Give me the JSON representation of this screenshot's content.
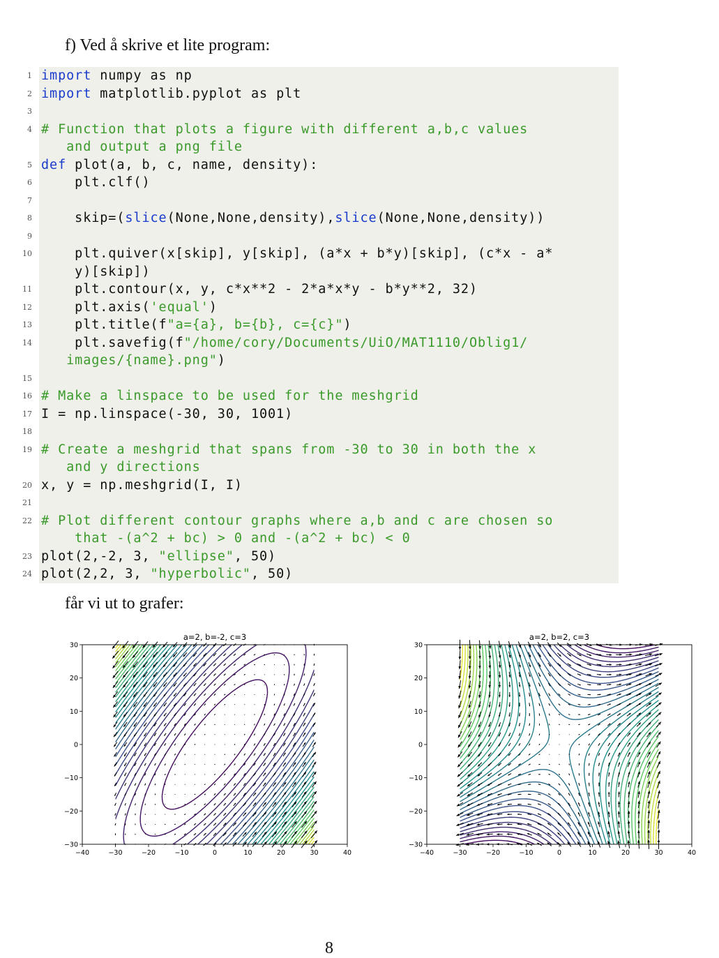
{
  "intro": "f) Ved å skrive et lite program:",
  "code": [
    {
      "n": "1",
      "segs": [
        {
          "t": "import",
          "c": "kw"
        },
        {
          "t": " numpy as np",
          "c": ""
        }
      ]
    },
    {
      "n": "2",
      "segs": [
        {
          "t": "import",
          "c": "kw"
        },
        {
          "t": " matplotlib.pyplot as plt",
          "c": ""
        }
      ]
    },
    {
      "n": "3",
      "segs": []
    },
    {
      "n": "4",
      "segs": [
        {
          "t": "# Function that plots a figure with different a,b,c values",
          "c": "cm"
        }
      ]
    },
    {
      "n": "",
      "segs": [
        {
          "t": "   and output a png file",
          "c": "cm"
        }
      ]
    },
    {
      "n": "5",
      "segs": [
        {
          "t": "def",
          "c": "kw"
        },
        {
          "t": " plot(a, b, c, name, density):",
          "c": ""
        }
      ]
    },
    {
      "n": "6",
      "segs": [
        {
          "t": "    plt.clf()",
          "c": ""
        }
      ]
    },
    {
      "n": "7",
      "segs": []
    },
    {
      "n": "8",
      "segs": [
        {
          "t": "    skip=(",
          "c": ""
        },
        {
          "t": "slice",
          "c": "kw"
        },
        {
          "t": "(None,None,density),",
          "c": ""
        },
        {
          "t": "slice",
          "c": "kw"
        },
        {
          "t": "(None,None,density))",
          "c": ""
        }
      ]
    },
    {
      "n": "9",
      "segs": []
    },
    {
      "n": "10",
      "segs": [
        {
          "t": "    plt.quiver(x[skip], y[skip], (a*x + b*y)[skip], (c*x - a*",
          "c": ""
        }
      ]
    },
    {
      "n": "",
      "segs": [
        {
          "t": "    y)[skip])",
          "c": ""
        }
      ]
    },
    {
      "n": "11",
      "segs": [
        {
          "t": "    plt.contour(x, y, c*x**2 - 2*a*x*y - b*y**2, 32)",
          "c": ""
        }
      ]
    },
    {
      "n": "12",
      "segs": [
        {
          "t": "    plt.axis(",
          "c": ""
        },
        {
          "t": "'equal'",
          "c": "st"
        },
        {
          "t": ")",
          "c": ""
        }
      ]
    },
    {
      "n": "13",
      "segs": [
        {
          "t": "    plt.title(f",
          "c": ""
        },
        {
          "t": "\"a={a}, b={b}, c={c}\"",
          "c": "st"
        },
        {
          "t": ")",
          "c": ""
        }
      ]
    },
    {
      "n": "14",
      "segs": [
        {
          "t": "    plt.savefig(f",
          "c": ""
        },
        {
          "t": "\"/home/cory/Documents/UiO/MAT1110/Oblig1/",
          "c": "st"
        }
      ]
    },
    {
      "n": "",
      "segs": [
        {
          "t": "   images/{name}.png\"",
          "c": "st"
        },
        {
          "t": ")",
          "c": ""
        }
      ]
    },
    {
      "n": "15",
      "segs": []
    },
    {
      "n": "16",
      "segs": [
        {
          "t": "# Make a linspace to be used for the meshgrid",
          "c": "cm"
        }
      ]
    },
    {
      "n": "17",
      "segs": [
        {
          "t": "I = np.linspace(-30, 30, 1001)",
          "c": ""
        }
      ]
    },
    {
      "n": "18",
      "segs": []
    },
    {
      "n": "19",
      "segs": [
        {
          "t": "# Create a meshgrid that spans from -30 to 30 in both the x",
          "c": "cm"
        }
      ]
    },
    {
      "n": "",
      "segs": [
        {
          "t": "   and y directions",
          "c": "cm"
        }
      ]
    },
    {
      "n": "20",
      "segs": [
        {
          "t": "x, y = np.meshgrid(I, I)",
          "c": ""
        }
      ]
    },
    {
      "n": "21",
      "segs": []
    },
    {
      "n": "22",
      "segs": [
        {
          "t": "# Plot different contour graphs where a,b and c are chosen so",
          "c": "cm"
        }
      ]
    },
    {
      "n": "",
      "segs": [
        {
          "t": "    that -(a^2 + bc) > 0 and -(a^2 + bc) < 0",
          "c": "cm"
        }
      ]
    },
    {
      "n": "23",
      "segs": [
        {
          "t": "plot(2,-2, 3, ",
          "c": ""
        },
        {
          "t": "\"ellipse\"",
          "c": "st"
        },
        {
          "t": ", 50)",
          "c": ""
        }
      ]
    },
    {
      "n": "24",
      "segs": [
        {
          "t": "plot(2,2, 3, ",
          "c": ""
        },
        {
          "t": "\"hyperbolic\"",
          "c": "st"
        },
        {
          "t": ", 50)",
          "c": ""
        }
      ]
    }
  ],
  "outro": "får vi ut to grafer:",
  "page_number": "8",
  "colors": {
    "keyword": "#1a3ccc",
    "comment": "#3a9a2a",
    "code_bg": "#f0f0eb"
  },
  "chart_data": [
    {
      "type": "contour",
      "title": "a=2, b=-2, c=3",
      "a": 2,
      "b": -2,
      "c": 3,
      "field": "c*x^2 - 2*a*x*y - b*y^2",
      "quiver": "(a*x + b*y, c*x - a*y)",
      "levels": 32,
      "colormap": "viridis",
      "xlim": [
        -40,
        40
      ],
      "ylim": [
        -30,
        30
      ],
      "data_extent": [
        -30,
        30
      ],
      "xticks": [
        "−40",
        "−30",
        "−20",
        "−10",
        "0",
        "10",
        "20",
        "30",
        "40"
      ],
      "yticks": [
        "30",
        "20",
        "10",
        "0",
        "−10",
        "−20",
        "−30"
      ]
    },
    {
      "type": "contour",
      "title": "a=2, b=2, c=3",
      "a": 2,
      "b": 2,
      "c": 3,
      "field": "c*x^2 - 2*a*x*y - b*y^2",
      "quiver": "(a*x + b*y, c*x - a*y)",
      "levels": 32,
      "colormap": "viridis",
      "xlim": [
        -40,
        40
      ],
      "ylim": [
        -30,
        30
      ],
      "data_extent": [
        -30,
        30
      ],
      "xticks": [
        "−40",
        "−30",
        "−20",
        "−10",
        "0",
        "10",
        "20",
        "30",
        "40"
      ],
      "yticks": [
        "30",
        "20",
        "10",
        "0",
        "−10",
        "−20",
        "−30"
      ]
    }
  ]
}
